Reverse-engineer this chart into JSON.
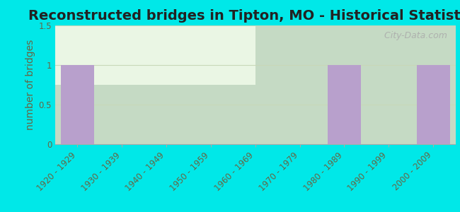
{
  "title": "Reconstructed bridges in Tipton, MO - Historical Statistics",
  "ylabel": "number of bridges",
  "categories": [
    "1920 - 1929",
    "1930 - 1939",
    "1940 - 1949",
    "1950 - 1959",
    "1960 - 1969",
    "1970 - 1979",
    "1980 - 1989",
    "1990 - 1999",
    "2000 - 2009"
  ],
  "values": [
    1,
    0,
    0,
    0,
    0,
    0,
    1,
    0,
    1
  ],
  "bar_color": "#b8a0cc",
  "background_outer": "#00e8e8",
  "background_inner_top": "#e8f5e2",
  "background_inner_bottom": "#f0faf0",
  "ylim": [
    0,
    1.5
  ],
  "yticks": [
    0,
    0.5,
    1,
    1.5
  ],
  "ytick_labels": [
    "0",
    "0.5",
    "1",
    "1.5"
  ],
  "grid_color": "#c8d8b8",
  "watermark": "   City-Data.com",
  "title_fontsize": 14,
  "ylabel_fontsize": 10,
  "tick_fontsize": 8.5,
  "title_color": "#222222",
  "tick_color": "#666644",
  "ylabel_color": "#666644"
}
